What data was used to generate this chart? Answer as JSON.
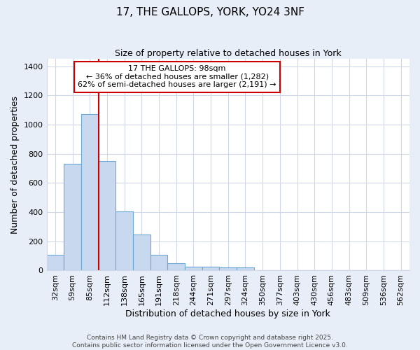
{
  "title1": "17, THE GALLOPS, YORK, YO24 3NF",
  "title2": "Size of property relative to detached houses in York",
  "xlabel": "Distribution of detached houses by size in York",
  "ylabel": "Number of detached properties",
  "categories": [
    "32sqm",
    "59sqm",
    "85sqm",
    "112sqm",
    "138sqm",
    "165sqm",
    "191sqm",
    "218sqm",
    "244sqm",
    "271sqm",
    "297sqm",
    "324sqm",
    "350sqm",
    "377sqm",
    "403sqm",
    "430sqm",
    "456sqm",
    "483sqm",
    "509sqm",
    "536sqm",
    "562sqm"
  ],
  "values": [
    110,
    730,
    1070,
    750,
    405,
    245,
    110,
    50,
    25,
    28,
    20,
    20,
    0,
    0,
    0,
    0,
    0,
    0,
    0,
    0,
    0
  ],
  "bar_color": "#c8d8ee",
  "bar_edge_color": "#6aaad4",
  "vline_x_index": 2.5,
  "vline_color": "#cc0000",
  "annotation_text": "17 THE GALLOPS: 98sqm\n← 36% of detached houses are smaller (1,282)\n62% of semi-detached houses are larger (2,191) →",
  "annotation_box_color": "#ffffff",
  "annotation_box_edge": "#cc0000",
  "ylim": [
    0,
    1450
  ],
  "yticks": [
    0,
    200,
    400,
    600,
    800,
    1000,
    1200,
    1400
  ],
  "bg_color": "#e8eef8",
  "plot_bg_color": "#ffffff",
  "grid_color": "#d0d8e8",
  "footnote1": "Contains HM Land Registry data © Crown copyright and database right 2025.",
  "footnote2": "Contains public sector information licensed under the Open Government Licence v3.0."
}
